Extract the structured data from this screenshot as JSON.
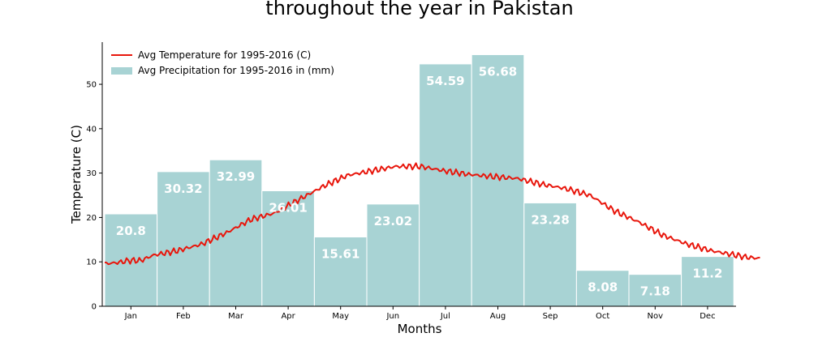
{
  "chart_data": {
    "type": "bar",
    "title": "throughout the year in Pakistan",
    "xlabel": "Months",
    "ylabel": "Temperature (C)",
    "ylim": [
      0,
      59.5
    ],
    "yticks": [
      0,
      10,
      20,
      30,
      40,
      50
    ],
    "categories": [
      "Jan",
      "Feb",
      "Mar",
      "Apr",
      "May",
      "Jun",
      "Jul",
      "Aug",
      "Sep",
      "Oct",
      "Nov",
      "Dec"
    ],
    "grid": false,
    "legend_position": "top-left",
    "bar_series": {
      "name": "Avg Precipitation for 1995-2016 in (mm)",
      "color": "#a8d3d4",
      "values": [
        20.8,
        30.32,
        32.99,
        26.01,
        15.61,
        23.02,
        54.59,
        56.68,
        23.28,
        8.08,
        7.18,
        11.2
      ]
    },
    "line_series": {
      "name": "Avg Temperature for 1995-2016 (C)",
      "color": "#e8160c",
      "anchor_points": [
        [
          0.0,
          9.6
        ],
        [
          0.25,
          9.8
        ],
        [
          0.5,
          10.3
        ],
        [
          0.75,
          10.3
        ],
        [
          1.0,
          11.5
        ],
        [
          1.5,
          12.5
        ],
        [
          2.0,
          14.0
        ],
        [
          2.5,
          16.5
        ],
        [
          3.0,
          19.5
        ],
        [
          3.5,
          21.0
        ],
        [
          4.0,
          24.0
        ],
        [
          4.5,
          27.0
        ],
        [
          5.0,
          29.5
        ],
        [
          5.5,
          30.5
        ],
        [
          6.0,
          31.5
        ],
        [
          6.5,
          31.5
        ],
        [
          7.0,
          30.5
        ],
        [
          7.5,
          29.7
        ],
        [
          8.0,
          29.2
        ],
        [
          8.5,
          28.8
        ],
        [
          9.0,
          27.5
        ],
        [
          9.5,
          26.5
        ],
        [
          10.0,
          25.0
        ],
        [
          10.5,
          21.5
        ],
        [
          11.0,
          19.0
        ],
        [
          11.5,
          16.0
        ],
        [
          12.0,
          14.0
        ],
        [
          12.5,
          12.5
        ],
        [
          13.0,
          11.5
        ],
        [
          13.25,
          11.0
        ],
        [
          13.5,
          10.8
        ]
      ]
    }
  }
}
